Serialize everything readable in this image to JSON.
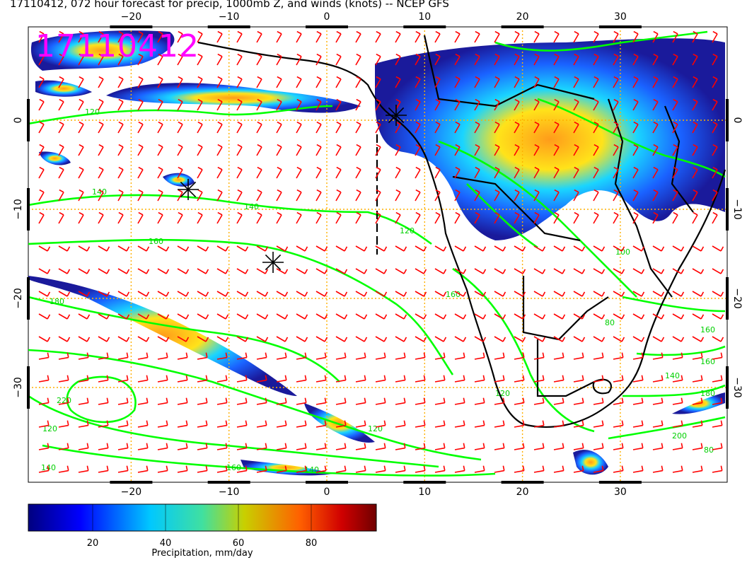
{
  "title": "17110412, 072 hour forecast for precip, 1000mb Z, and winds (knots) -- NCEP GFS",
  "stamp": "17110412",
  "axes": {
    "lon_ticks": [
      "−20",
      "−10",
      "0",
      "10",
      "20",
      "30"
    ],
    "lat_ticks": [
      "0",
      "−10",
      "−20",
      "−30"
    ]
  },
  "contour_labels": [
    "120",
    "140",
    "140",
    "160",
    "120",
    "180",
    "160",
    "120",
    "100",
    "80",
    "160",
    "160",
    "140",
    "180",
    "200",
    "220",
    "120",
    "140",
    "160",
    "120",
    "140",
    "80"
  ],
  "colorbar": {
    "ticks": [
      "20",
      "40",
      "60",
      "80"
    ],
    "label": "Precipitation, mm/day"
  },
  "colors": {
    "wind_barbs": "#ff0000",
    "contours": "#00ff00",
    "coast": "#000000",
    "grid": "#ffb000",
    "stamp": "#ff00ff",
    "precip_low": "#00007f",
    "precip_high": "#7f0000"
  },
  "legend_symbols": [
    "star-marker"
  ]
}
